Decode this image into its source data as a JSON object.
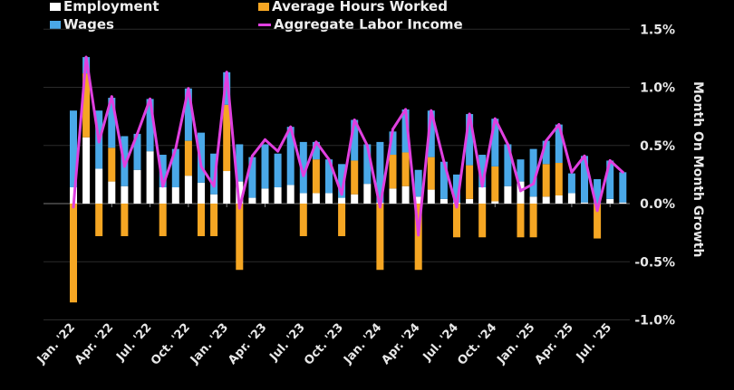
{
  "chart_data": {
    "type": "bar",
    "stacked": true,
    "ylabel": "Month On Month Growth",
    "ylim": [
      -1.0,
      1.5
    ],
    "yticks": [
      "1.5%",
      "1.0%",
      "0.5%",
      "0.0%",
      "-0.5%",
      "-1.0%"
    ],
    "ytick_values": [
      1.5,
      1.0,
      0.5,
      0.0,
      -0.5,
      -1.0
    ],
    "grid": true,
    "legend_position": "top",
    "x_tick_labels": [
      "Jan. '22",
      "Apr. '22",
      "Jul. '22",
      "Oct. '22",
      "Jan. '23",
      "Apr. '23",
      "Jul. '23",
      "Oct. '23",
      "Jan. '24",
      "Apr. '24",
      "Jul. '24",
      "Oct. '24",
      "Jan. '25",
      "Apr. '25",
      "Jul. '25"
    ],
    "x": [
      "2022-01",
      "2022-02",
      "2022-03",
      "2022-04",
      "2022-05",
      "2022-06",
      "2022-07",
      "2022-08",
      "2022-09",
      "2022-10",
      "2022-11",
      "2022-12",
      "2023-01",
      "2023-02",
      "2023-03",
      "2023-04",
      "2023-05",
      "2023-06",
      "2023-07",
      "2023-08",
      "2023-09",
      "2023-10",
      "2023-11",
      "2023-12",
      "2024-01",
      "2024-02",
      "2024-03",
      "2024-04",
      "2024-05",
      "2024-06",
      "2024-07",
      "2024-08",
      "2024-09",
      "2024-10",
      "2024-11",
      "2024-12",
      "2025-01",
      "2025-02",
      "2025-03",
      "2025-04",
      "2025-05",
      "2025-06",
      "2025-07",
      "2025-08"
    ],
    "series": [
      {
        "name": "Employment",
        "kind": "bar",
        "color": "#ffffff",
        "values": [
          0.14,
          0.57,
          0.3,
          0.19,
          0.15,
          0.29,
          0.45,
          0.14,
          0.14,
          0.24,
          0.18,
          0.08,
          0.28,
          0.19,
          0.05,
          0.13,
          0.14,
          0.16,
          0.09,
          0.09,
          0.09,
          0.05,
          0.08,
          0.17,
          0.01,
          0.13,
          0.15,
          0.06,
          0.12,
          0.04,
          0.01,
          0.04,
          0.14,
          0.02,
          0.15,
          0.19,
          0.06,
          0.06,
          0.07,
          0.09,
          0.01,
          0.0,
          0.04,
          0.01
        ]
      },
      {
        "name": "Average Hours Worked",
        "kind": "bar",
        "color": "#f5a623",
        "values": [
          -0.85,
          0.55,
          -0.28,
          0.29,
          -0.28,
          0,
          0,
          -0.28,
          0,
          0.3,
          -0.28,
          -0.28,
          0.57,
          -0.57,
          0,
          0,
          0,
          0,
          -0.28,
          0.29,
          0,
          -0.28,
          0.29,
          0,
          -0.57,
          0.29,
          0.29,
          -0.57,
          0.28,
          0,
          -0.29,
          0.29,
          -0.29,
          0.3,
          0,
          -0.29,
          -0.29,
          0.28,
          0.28,
          0,
          0,
          -0.3,
          0,
          0
        ]
      },
      {
        "name": "Wages",
        "kind": "bar",
        "color": "#4aa8e8",
        "values": [
          0.66,
          0.14,
          0.5,
          0.43,
          0.43,
          0.31,
          0.45,
          0.28,
          0.33,
          0.45,
          0.43,
          0.35,
          0.28,
          0.32,
          0.35,
          0.38,
          0.29,
          0.5,
          0.44,
          0.15,
          0.29,
          0.29,
          0.35,
          0.34,
          0.52,
          0.2,
          0.37,
          0.23,
          0.4,
          0.32,
          0.24,
          0.44,
          0.28,
          0.41,
          0.36,
          0.19,
          0.41,
          0.2,
          0.33,
          0.17,
          0.4,
          0.21,
          0.33,
          0.26
        ]
      },
      {
        "name": "Aggregate Labor Income",
        "kind": "line",
        "color": "#e040e0",
        "values": [
          -0.03,
          1.26,
          0.53,
          0.92,
          0.32,
          0.6,
          0.9,
          0.15,
          0.47,
          0.99,
          0.32,
          0.15,
          1.13,
          -0.04,
          0.41,
          0.55,
          0.45,
          0.66,
          0.24,
          0.53,
          0.38,
          0.08,
          0.72,
          0.5,
          -0.03,
          0.64,
          0.81,
          -0.27,
          0.8,
          0.36,
          -0.03,
          0.77,
          0.15,
          0.73,
          0.51,
          0.11,
          0.17,
          0.54,
          0.68,
          0.27,
          0.41,
          -0.06,
          0.37,
          0.27
        ]
      }
    ]
  }
}
